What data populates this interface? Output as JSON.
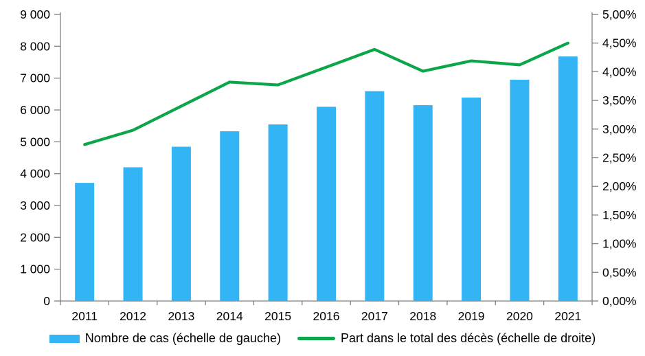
{
  "chart_data": {
    "type": "combo-bar-line",
    "title": "",
    "xlabel": "",
    "ylabel": "",
    "grid": false,
    "categories": [
      "2011",
      "2012",
      "2013",
      "2014",
      "2015",
      "2016",
      "2017",
      "2018",
      "2019",
      "2020",
      "2021"
    ],
    "series": [
      {
        "name": "Nombre de cas (échelle de gauche)",
        "type": "bar",
        "axis": "left",
        "values": [
          3710,
          4200,
          4845,
          5330,
          5545,
          6100,
          6590,
          6150,
          6390,
          6950,
          7680
        ]
      },
      {
        "name": "Part dans le total des décès (échelle de droite)",
        "type": "line",
        "axis": "right",
        "values": [
          2.73,
          2.98,
          3.4,
          3.82,
          3.77,
          4.08,
          4.39,
          4.01,
          4.19,
          4.12,
          4.5
        ]
      }
    ],
    "left_axis": {
      "min": 0,
      "max": 9000,
      "step": 1000,
      "tick_labels": [
        "0",
        "1 000",
        "2 000",
        "3 000",
        "4 000",
        "5 000",
        "6 000",
        "7 000",
        "8 000",
        "9 000"
      ]
    },
    "right_axis": {
      "min": 0,
      "max": 5,
      "step": 0.5,
      "tick_labels": [
        "0,00%",
        "0,50%",
        "1,00%",
        "1,50%",
        "2,00%",
        "2,50%",
        "3,00%",
        "3,50%",
        "4,00%",
        "4,50%",
        "5,00%"
      ]
    },
    "legend": {
      "position": "bottom",
      "entries": [
        {
          "label": "Nombre de cas (échelle de gauche)",
          "swatch": "bar"
        },
        {
          "label": "Part dans le total des décès (échelle de droite)",
          "swatch": "line"
        }
      ]
    },
    "colors": {
      "bar": "#33B4F5",
      "line": "#0CA64A",
      "axis": "#7f7f7f",
      "text": "#000000"
    }
  }
}
